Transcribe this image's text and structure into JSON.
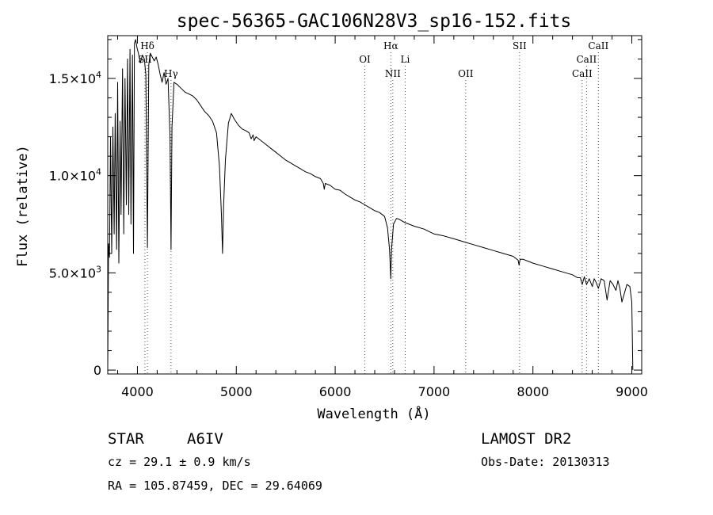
{
  "chart_data": {
    "type": "line",
    "title": "spec-56365-GAC106N28V3_sp16-152.fits",
    "xlabel": "Wavelength (Å)",
    "ylabel": "Flux (relative)",
    "xlim": [
      3700,
      9100
    ],
    "ylim": [
      -200,
      17200
    ],
    "x_ticks": [
      {
        "value": 4000,
        "label": "4000"
      },
      {
        "value": 5000,
        "label": "5000"
      },
      {
        "value": 6000,
        "label": "6000"
      },
      {
        "value": 7000,
        "label": "7000"
      },
      {
        "value": 8000,
        "label": "8000"
      },
      {
        "value": 9000,
        "label": "9000"
      }
    ],
    "y_ticks": [
      {
        "value": 0,
        "mantissa": "0",
        "exponent": ""
      },
      {
        "value": 5000,
        "mantissa": "5.0×10",
        "exponent": "3"
      },
      {
        "value": 10000,
        "mantissa": "1.0×10",
        "exponent": "4"
      },
      {
        "value": 15000,
        "mantissa": "1.5×10",
        "exponent": "4"
      }
    ],
    "series": [
      {
        "name": "flux",
        "x": [
          3700,
          3708,
          3718,
          3728,
          3740,
          3752,
          3765,
          3775,
          3790,
          3800,
          3812,
          3825,
          3835,
          3850,
          3862,
          3875,
          3888,
          3900,
          3912,
          3925,
          3935,
          3950,
          3960,
          3970,
          3982,
          3995,
          4010,
          4030,
          4050,
          4070,
          4085,
          4101,
          4115,
          4130,
          4150,
          4170,
          4190,
          4210,
          4230,
          4250,
          4270,
          4290,
          4310,
          4330,
          4340,
          4350,
          4370,
          4400,
          4440,
          4480,
          4520,
          4560,
          4600,
          4640,
          4680,
          4720,
          4760,
          4800,
          4830,
          4850,
          4861,
          4872,
          4890,
          4920,
          4950,
          4980,
          5020,
          5060,
          5100,
          5130,
          5150,
          5170,
          5180,
          5200,
          5250,
          5300,
          5350,
          5400,
          5450,
          5500,
          5550,
          5600,
          5650,
          5700,
          5750,
          5800,
          5850,
          5880,
          5890,
          5900,
          5950,
          6000,
          6050,
          6100,
          6150,
          6200,
          6250,
          6300,
          6350,
          6400,
          6450,
          6500,
          6530,
          6550,
          6563,
          6570,
          6590,
          6620,
          6650,
          6700,
          6800,
          6900,
          7000,
          7100,
          7200,
          7300,
          7400,
          7500,
          7600,
          7700,
          7800,
          7850,
          7860,
          7870,
          7900,
          8000,
          8100,
          8200,
          8300,
          8400,
          8450,
          8480,
          8498,
          8520,
          8542,
          8570,
          8600,
          8620,
          8640,
          8662,
          8690,
          8720,
          8750,
          8780,
          8810,
          8840,
          8860,
          8880,
          8900,
          8950,
          8980,
          9000,
          9010
        ],
        "values": [
          0,
          6500,
          5800,
          12000,
          6000,
          12500,
          7000,
          13200,
          6200,
          14800,
          5500,
          12800,
          8000,
          15500,
          7000,
          15000,
          8500,
          16000,
          8000,
          16500,
          7500,
          16200,
          6000,
          16800,
          17000,
          16600,
          16300,
          15800,
          16200,
          16000,
          15200,
          6300,
          15700,
          16300,
          16100,
          15900,
          16100,
          15700,
          15200,
          14800,
          15300,
          14700,
          15000,
          12000,
          6200,
          12500,
          14800,
          14700,
          14500,
          14300,
          14200,
          14100,
          13900,
          13600,
          13300,
          13100,
          12800,
          12200,
          10500,
          8000,
          6000,
          8500,
          10800,
          12700,
          13200,
          12900,
          12600,
          12400,
          12300,
          12200,
          11900,
          12100,
          11800,
          12000,
          11800,
          11600,
          11400,
          11200,
          11000,
          10800,
          10650,
          10500,
          10350,
          10200,
          10100,
          9950,
          9850,
          9600,
          9300,
          9600,
          9500,
          9300,
          9250,
          9050,
          8900,
          8750,
          8650,
          8500,
          8350,
          8200,
          8100,
          7900,
          7300,
          6200,
          4700,
          6200,
          7500,
          7800,
          7750,
          7600,
          7400,
          7250,
          7000,
          6900,
          6750,
          6600,
          6450,
          6300,
          6150,
          6000,
          5850,
          5650,
          5400,
          5700,
          5700,
          5500,
          5350,
          5200,
          5050,
          4900,
          4750,
          4750,
          4400,
          4800,
          4400,
          4700,
          4300,
          4700,
          4500,
          4200,
          4700,
          4600,
          3600,
          4600,
          4400,
          4100,
          4600,
          4200,
          3500,
          4400,
          4300,
          3500,
          0
        ]
      }
    ],
    "annotations": [
      {
        "label": "Hδ",
        "wavelength": 4101,
        "row": 0
      },
      {
        "label": "SII",
        "wavelength": 4076,
        "row": 1
      },
      {
        "label": "Hγ",
        "wavelength": 4340,
        "row": 2
      },
      {
        "label": "Hα",
        "wavelength": 6563,
        "row": 0
      },
      {
        "label": "OI",
        "wavelength": 6300,
        "row": 1
      },
      {
        "label": "Li",
        "wavelength": 6708,
        "row": 1
      },
      {
        "label": "NII",
        "wavelength": 6583,
        "row": 2
      },
      {
        "label": "OII",
        "wavelength": 7320,
        "row": 2
      },
      {
        "label": "SII",
        "wavelength": 7865,
        "row": 0
      },
      {
        "label": "CaII",
        "wavelength": 8662,
        "row": 0
      },
      {
        "label": "CaII",
        "wavelength": 8542,
        "row": 1
      },
      {
        "label": "CaII",
        "wavelength": 8498,
        "row": 2
      }
    ],
    "grid": false,
    "legend": "none"
  },
  "info": {
    "star_label": "STAR",
    "spectral_type": "A6IV",
    "survey": "LAMOST DR2",
    "cz": "cz = 29.1 ± 0.9 km/s",
    "obs_date": "Obs-Date: 20130313",
    "ra_dec": "RA = 105.87459, DEC =  29.64069"
  }
}
